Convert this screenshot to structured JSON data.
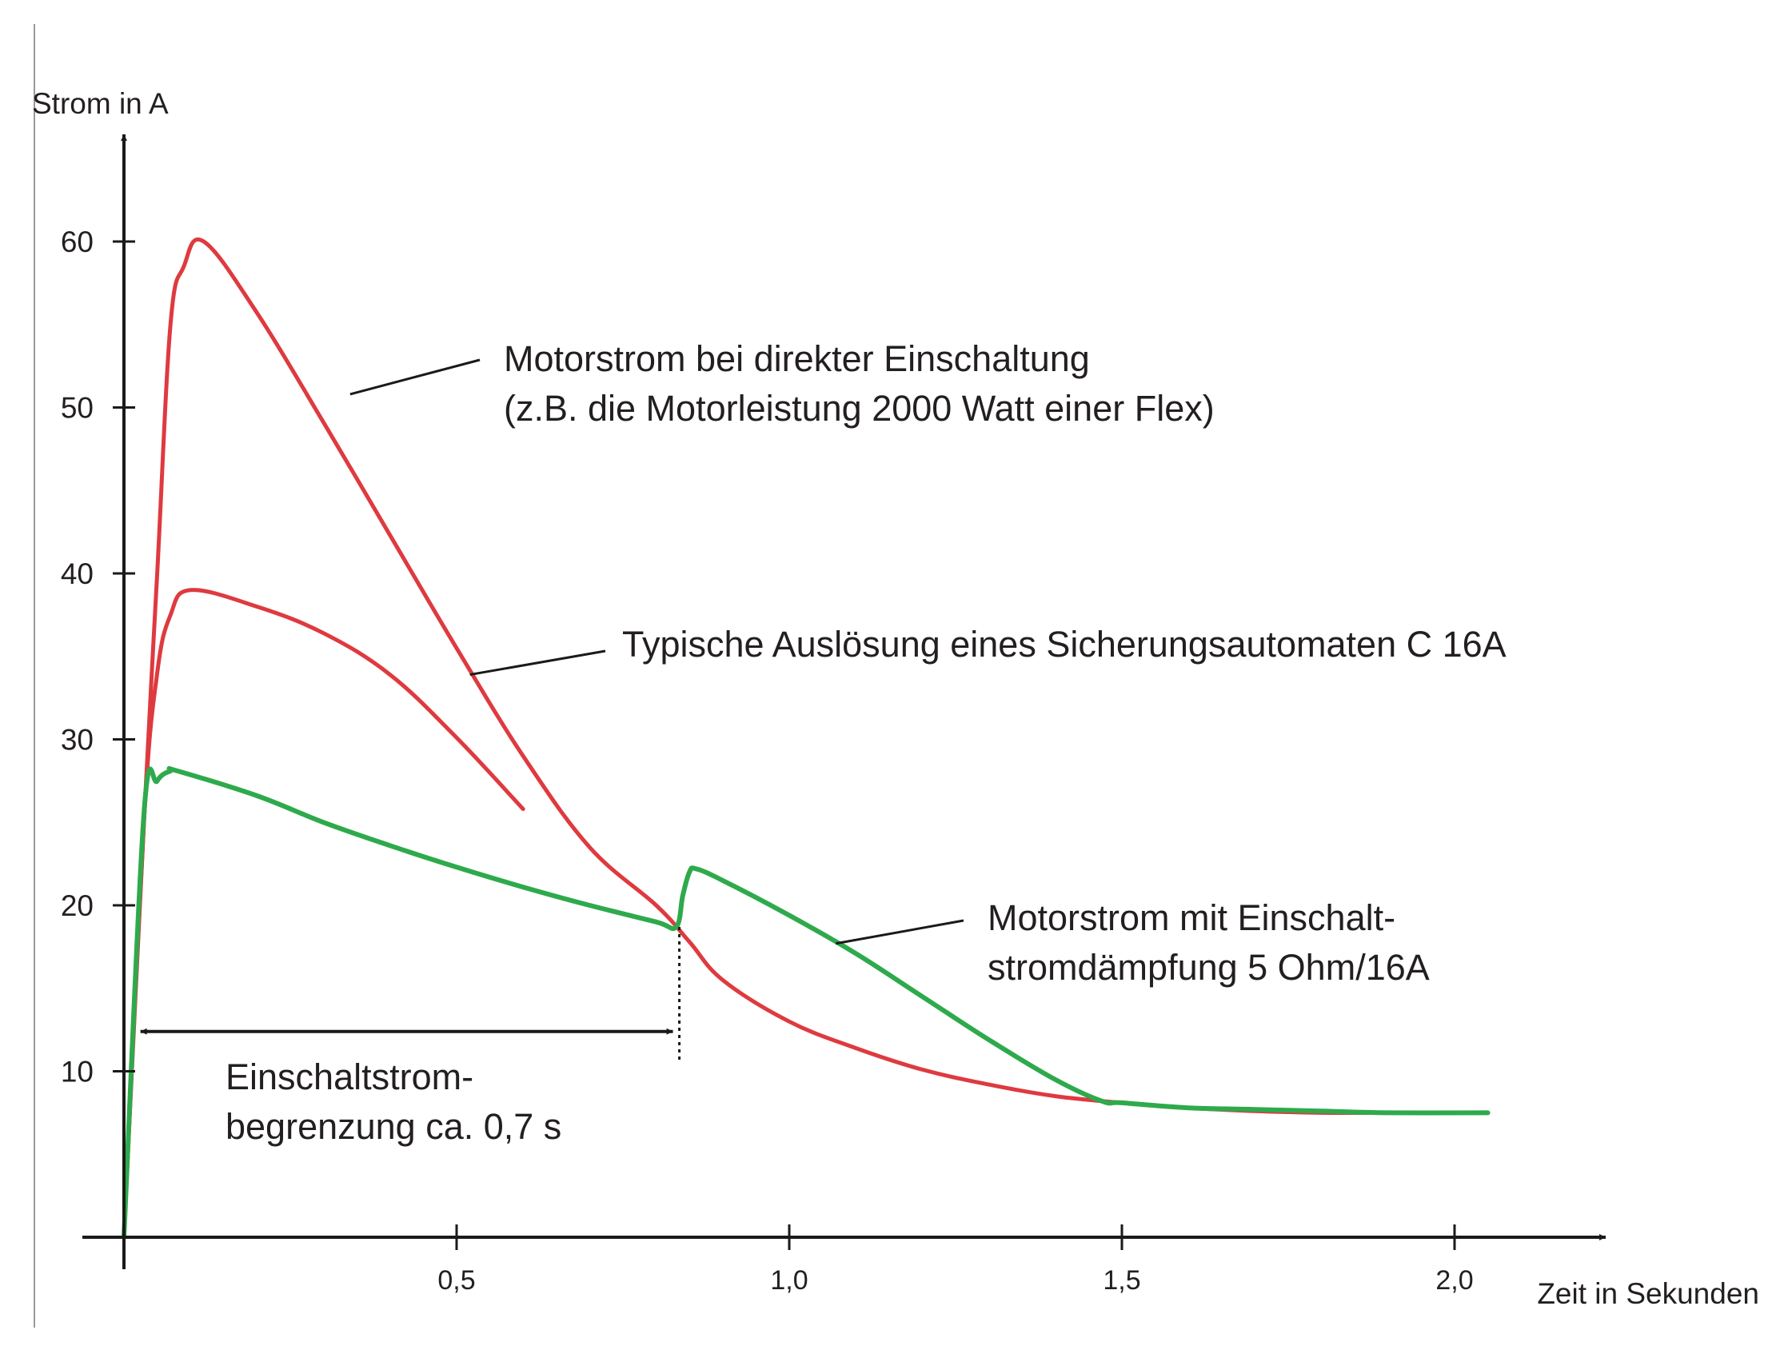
{
  "chart_data": {
    "type": "line",
    "ylabel": "Strom in A",
    "xlabel": "Zeit in Sekunden",
    "xlim": [
      0,
      2.2
    ],
    "ylim": [
      0,
      65
    ],
    "x_ticks": [
      {
        "value": 0.5,
        "label": "0,5"
      },
      {
        "value": 1.0,
        "label": "1,0"
      },
      {
        "value": 1.5,
        "label": "1,5"
      },
      {
        "value": 2.0,
        "label": "2,0"
      }
    ],
    "y_ticks": [
      {
        "value": 10,
        "label": "10"
      },
      {
        "value": 20,
        "label": "20"
      },
      {
        "value": 30,
        "label": "30"
      },
      {
        "value": 40,
        "label": "40"
      },
      {
        "value": 50,
        "label": "50"
      },
      {
        "value": 60,
        "label": "60"
      }
    ],
    "grid": false,
    "colors": {
      "red": "#de3a3f",
      "green": "#2eaa4c",
      "black": "#1a1a1a"
    },
    "series": [
      {
        "color": "#de3a3f",
        "points": [
          [
            0,
            0
          ],
          [
            0.03,
            25
          ],
          [
            0.05,
            40
          ],
          [
            0.07,
            55
          ],
          [
            0.09,
            58.5
          ],
          [
            0.12,
            60
          ],
          [
            0.2,
            55.7
          ],
          [
            0.3,
            49.1
          ],
          [
            0.4,
            42.3
          ],
          [
            0.5,
            35.5
          ],
          [
            0.6,
            29
          ],
          [
            0.7,
            23.5
          ],
          [
            0.8,
            20
          ],
          [
            0.85,
            17.8
          ],
          [
            0.9,
            15.5
          ],
          [
            1.0,
            13
          ],
          [
            1.1,
            11.4
          ],
          [
            1.2,
            10.1
          ],
          [
            1.3,
            9.2
          ],
          [
            1.4,
            8.5
          ],
          [
            1.5,
            8.1
          ],
          [
            1.6,
            7.8
          ],
          [
            1.7,
            7.6
          ],
          [
            1.8,
            7.5
          ],
          [
            1.9,
            7.5
          ],
          [
            2.05,
            7.5
          ]
        ]
      },
      {
        "color": "#de3a3f",
        "points": [
          [
            0,
            0
          ],
          [
            0.03,
            25
          ],
          [
            0.05,
            34
          ],
          [
            0.07,
            37.5
          ],
          [
            0.1,
            39
          ],
          [
            0.2,
            38
          ],
          [
            0.3,
            36.4
          ],
          [
            0.4,
            33.9
          ],
          [
            0.5,
            30.1
          ],
          [
            0.6,
            25.8
          ]
        ]
      },
      {
        "color": "#2eaa4c",
        "points": [
          [
            0,
            0
          ],
          [
            0.03,
            25.5
          ],
          [
            0.05,
            27.5
          ],
          [
            0.07,
            28.1
          ],
          [
            0.08,
            28.1
          ],
          [
            0.2,
            26.6
          ],
          [
            0.3,
            25
          ],
          [
            0.4,
            23.6
          ],
          [
            0.5,
            22.3
          ],
          [
            0.6,
            21.1
          ],
          [
            0.7,
            20
          ],
          [
            0.8,
            19
          ],
          [
            0.83,
            18.7
          ],
          [
            0.84,
            20.6
          ],
          [
            0.85,
            22
          ],
          [
            0.86,
            22.2
          ],
          [
            0.9,
            21.5
          ],
          [
            1.0,
            19.4
          ],
          [
            1.1,
            17.1
          ],
          [
            1.2,
            14.5
          ],
          [
            1.3,
            11.9
          ],
          [
            1.4,
            9.5
          ],
          [
            1.47,
            8.2
          ],
          [
            1.5,
            8.1
          ],
          [
            1.6,
            7.8
          ],
          [
            1.7,
            7.7
          ],
          [
            1.8,
            7.6
          ],
          [
            1.9,
            7.5
          ],
          [
            2.05,
            7.5
          ]
        ]
      }
    ],
    "annotations": [
      {
        "lines": [
          "Motorstrom bei direkter Einschaltung",
          "(z.B. die Motorleistung 2000 Watt einer Flex)"
        ],
        "pointer_to": [
          0.34,
          50.8
        ]
      },
      {
        "lines": [
          "Typische Auslösung eines Sicherungsautomaten C 16A"
        ],
        "pointer_to": [
          0.52,
          33.9
        ]
      },
      {
        "lines": [
          "Motorstrom mit Einschalt-",
          "stromdämpfung 5 Ohm/16A"
        ],
        "pointer_to": [
          1.07,
          17.7
        ]
      },
      {
        "lines": [
          "Einschaltstrom-",
          "begrenzung ca. 0,7 s"
        ],
        "span_x": [
          0.02,
          0.83
        ],
        "span_y": 12.4
      }
    ]
  }
}
